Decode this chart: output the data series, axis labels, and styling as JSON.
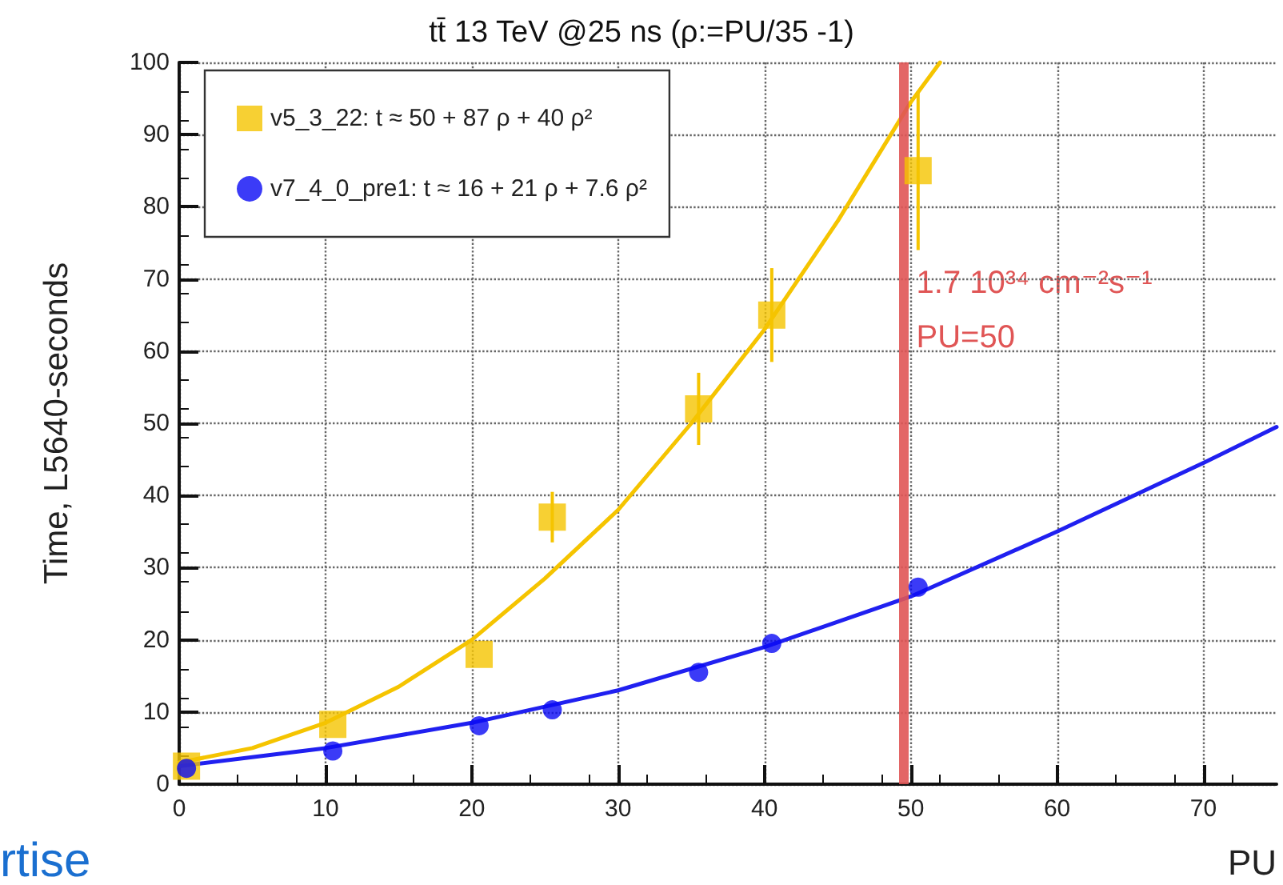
{
  "chart_data": {
    "type": "scatter",
    "title": "tt̄ 13 TeV @25 ns (ρ:=PU/35 -1)",
    "xlabel": "PU",
    "ylabel": "Time, L5640-seconds",
    "xlim": [
      0,
      75
    ],
    "xticks": [
      0,
      10,
      20,
      30,
      40,
      50,
      60,
      70
    ],
    "ylim": [
      0,
      100
    ],
    "yticks": [
      0,
      10,
      20,
      30,
      40,
      50,
      60,
      70,
      80,
      90,
      100
    ],
    "grid": true,
    "legend": "top left",
    "series": [
      {
        "name": "v5_3_22: t ≈ 50 + 87 ρ + 40 ρ²",
        "marker": "square",
        "color": "#f5c400",
        "x": [
          0.5,
          10.5,
          20.5,
          25.5,
          35.5,
          40.5,
          50.5
        ],
        "values": [
          2.5,
          8.3,
          18,
          37,
          52,
          65,
          85
        ],
        "errors": [
          null,
          null,
          null,
          3.5,
          5,
          6.5,
          11
        ]
      },
      {
        "name": "v7_4_0_pre1: t ≈ 16 + 21 ρ + 7.6 ρ²",
        "marker": "circle",
        "color": "#0a0af5",
        "x": [
          0.5,
          10.5,
          20.5,
          25.5,
          35.5,
          40.5,
          50.5
        ],
        "values": [
          2.2,
          4.6,
          8.1,
          10.3,
          15.5,
          19.5,
          27.3
        ]
      },
      {
        "type": "line",
        "marker": "none",
        "color": "#f5c400",
        "x": [
          0,
          5,
          10,
          15,
          20,
          25,
          30,
          35,
          40,
          45,
          50,
          52
        ],
        "values": [
          3,
          5,
          8.5,
          13.5,
          20,
          28.5,
          38,
          50,
          63,
          78,
          94.5,
          100
        ]
      },
      {
        "type": "line",
        "marker": "none",
        "color": "#2020f0",
        "x": [
          0,
          10,
          20,
          30,
          40,
          50,
          60,
          70,
          75
        ],
        "values": [
          2.5,
          5,
          8.5,
          13,
          19,
          26,
          35,
          44.5,
          49.5
        ]
      }
    ],
    "ref_lines": [
      {
        "axis": "x",
        "value": 49.5,
        "label": "1.7 10³⁴ cm⁻²s⁻¹\nPU=50",
        "color": "#e05555",
        "line_style": "solid"
      }
    ],
    "annotations": [
      "rtise"
    ]
  }
}
